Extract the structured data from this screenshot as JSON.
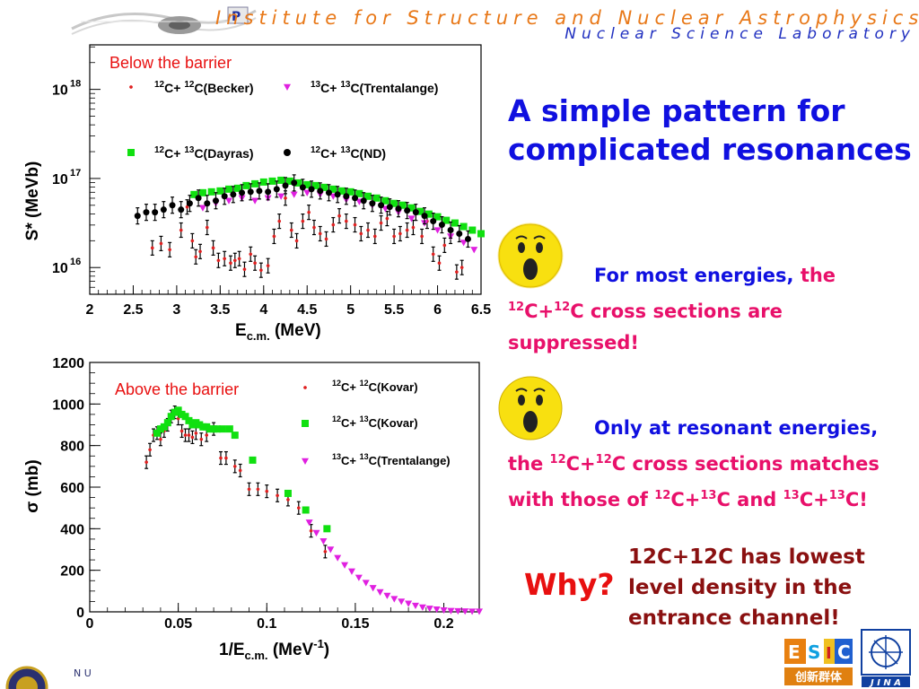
{
  "header": {
    "line1": "Institute for Structure and Nuclear Astrophysics",
    "line2": "Nuclear Science Laboratory"
  },
  "slide": {
    "title": "A simple pattern for complicated resonances",
    "bullet1": {
      "part1": "For most energies",
      "part2": ", ",
      "part3": "the ",
      "part4": "12",
      "part5": "C+",
      "part6": "12",
      "part7": "C cross sections are suppressed!"
    },
    "bullet2": {
      "part1": "Only at resonant energies",
      "part2": ", ",
      "part3": "the ",
      "part4": "12",
      "part5": "C+",
      "part6": "12",
      "part7": "C cross sections matches with those of ",
      "part8": "12",
      "part9": "C+",
      "part10": "13",
      "part11": "C and ",
      "part12": "13",
      "part13": "C+",
      "part14": "13",
      "part15": "C!"
    },
    "why": "Why?",
    "reason": "12C+12C has lowest level density in the entrance channel!",
    "logo_esic_text": "创新群体",
    "logo_jina_text": "J I N A"
  },
  "chart_data": [
    {
      "type": "scatter",
      "annotation": "Below the barrier",
      "xlabel_main": "E",
      "xlabel_sub": "c.m.",
      "xlabel_unit": " (MeV)",
      "ylabel": "S* (MeVb)",
      "xlim": [
        2,
        6.5
      ],
      "ylim_log10": [
        15.7,
        18.5
      ],
      "yscale": "log",
      "xticks": [
        "2",
        "2.5",
        "3",
        "3.5",
        "4",
        "4.5",
        "5",
        "5.5",
        "6",
        "6.5"
      ],
      "yticks": [
        {
          "base": "10",
          "exp": "16",
          "value": 16
        },
        {
          "base": "10",
          "exp": "17",
          "value": 17
        },
        {
          "base": "10",
          "exp": "18",
          "value": 18
        }
      ],
      "legend": [
        {
          "pre1": "12",
          "mid1": "C+ ",
          "pre2": "12",
          "post": "C(Becker)",
          "marker": "star",
          "color": "#e02020"
        },
        {
          "pre1": "13",
          "mid1": "C+ ",
          "pre2": "13",
          "post": "C(Trentalange)",
          "marker": "tri",
          "color": "#e020e0"
        },
        {
          "pre1": "12",
          "mid1": "C+ ",
          "pre2": "13",
          "post": "C(Dayras)",
          "marker": "square",
          "color": "#10e010"
        },
        {
          "pre1": "12",
          "mid1": "C+ ",
          "pre2": "13",
          "post": "C(ND)",
          "marker": "circle",
          "color": "#000000"
        }
      ],
      "series": [
        {
          "legend_index": 0,
          "marker": "star",
          "color": "#e02020",
          "errorbars": true,
          "x": [
            2.72,
            2.82,
            2.92,
            3.05,
            3.12,
            3.18,
            3.22,
            3.27,
            3.35,
            3.42,
            3.48,
            3.55,
            3.62,
            3.67,
            3.72,
            3.78,
            3.85,
            3.9,
            3.97,
            4.05,
            4.12,
            4.18,
            4.25,
            4.32,
            4.38,
            4.45,
            4.52,
            4.58,
            4.65,
            4.72,
            4.8,
            4.87,
            4.95,
            5.05,
            5.12,
            5.2,
            5.28,
            5.35,
            5.42,
            5.5,
            5.57,
            5.65,
            5.72,
            5.82,
            5.88,
            5.95,
            6.02,
            6.08,
            6.15,
            6.22,
            6.28
          ],
          "y": [
            16.22,
            16.27,
            16.2,
            16.42,
            16.68,
            16.3,
            16.12,
            16.18,
            16.45,
            16.22,
            16.08,
            16.1,
            16.05,
            16.08,
            16.1,
            15.98,
            16.15,
            16.05,
            15.97,
            16.02,
            16.35,
            16.52,
            16.78,
            16.42,
            16.3,
            16.52,
            16.62,
            16.45,
            16.38,
            16.32,
            16.48,
            16.58,
            16.52,
            16.48,
            16.38,
            16.42,
            16.35,
            16.5,
            16.55,
            16.35,
            16.38,
            16.42,
            16.45,
            16.35,
            16.52,
            16.15,
            16.05,
            16.25,
            16.35,
            15.95,
            16.0
          ]
        },
        {
          "legend_index": 1,
          "marker": "tri",
          "color": "#e020e0",
          "errorbars": false,
          "x": [
            3.3,
            3.45,
            3.6,
            3.75,
            3.9,
            4.05,
            4.2,
            4.35,
            4.5,
            4.65,
            4.8,
            4.95,
            5.1,
            5.25,
            5.4,
            5.55,
            5.7,
            5.85,
            6.0,
            6.15,
            6.3,
            6.42
          ],
          "y": [
            16.67,
            16.72,
            16.75,
            16.78,
            16.75,
            16.78,
            16.8,
            16.82,
            16.84,
            16.82,
            16.8,
            16.76,
            16.74,
            16.7,
            16.66,
            16.62,
            16.55,
            16.5,
            16.42,
            16.35,
            16.28,
            16.2
          ]
        },
        {
          "legend_index": 2,
          "marker": "square",
          "color": "#10e010",
          "errorbars": false,
          "x": [
            3.2,
            3.3,
            3.4,
            3.5,
            3.6,
            3.7,
            3.8,
            3.9,
            4.0,
            4.1,
            4.2,
            4.3,
            4.4,
            4.5,
            4.6,
            4.7,
            4.8,
            4.9,
            5.0,
            5.1,
            5.2,
            5.3,
            5.4,
            5.5,
            5.6,
            5.7,
            5.8,
            5.9,
            6.0,
            6.1,
            6.2,
            6.3,
            6.4,
            6.5
          ],
          "y": [
            16.82,
            16.84,
            16.85,
            16.86,
            16.88,
            16.89,
            16.92,
            16.94,
            16.96,
            16.97,
            16.98,
            16.97,
            16.95,
            16.93,
            16.92,
            16.9,
            16.88,
            16.86,
            16.85,
            16.83,
            16.8,
            16.78,
            16.75,
            16.72,
            16.7,
            16.67,
            16.63,
            16.6,
            16.57,
            16.53,
            16.5,
            16.46,
            16.42,
            16.38
          ]
        },
        {
          "legend_index": 3,
          "marker": "circle",
          "color": "#000000",
          "errorbars": true,
          "x": [
            2.55,
            2.65,
            2.75,
            2.85,
            2.95,
            3.05,
            3.15,
            3.25,
            3.35,
            3.45,
            3.55,
            3.65,
            3.75,
            3.85,
            3.95,
            4.05,
            4.15,
            4.25,
            4.35,
            4.45,
            4.55,
            4.65,
            4.75,
            4.85,
            4.95,
            5.05,
            5.15,
            5.25,
            5.35,
            5.45,
            5.55,
            5.65,
            5.75,
            5.85,
            5.95,
            6.05,
            6.15,
            6.25,
            6.35
          ],
          "y": [
            16.58,
            16.62,
            16.62,
            16.65,
            16.7,
            16.65,
            16.72,
            16.78,
            16.72,
            16.75,
            16.8,
            16.82,
            16.84,
            16.85,
            16.86,
            16.85,
            16.88,
            16.92,
            16.95,
            16.9,
            16.88,
            16.86,
            16.84,
            16.82,
            16.8,
            16.78,
            16.75,
            16.72,
            16.7,
            16.68,
            16.66,
            16.64,
            16.62,
            16.58,
            16.52,
            16.48,
            16.42,
            16.38,
            16.32
          ]
        }
      ]
    },
    {
      "type": "scatter",
      "annotation": "Above the barrier",
      "xlabel_main": "1/E",
      "xlabel_sub": "c.m.",
      "xlabel_unit": " (MeV",
      "xlabel_exp": "-1",
      "xlabel_close": ")",
      "ylabel": "σ (mb)",
      "xlim": [
        0,
        0.22
      ],
      "ylim": [
        0,
        1200
      ],
      "xticks": [
        {
          "label": "0",
          "value": 0
        },
        {
          "label": "0.05",
          "value": 0.05
        },
        {
          "label": "0.1",
          "value": 0.1
        },
        {
          "label": "0.15",
          "value": 0.15
        },
        {
          "label": "0.2",
          "value": 0.2
        }
      ],
      "yticks": [
        {
          "label": "0",
          "value": 0
        },
        {
          "label": "200",
          "value": 200
        },
        {
          "label": "400",
          "value": 400
        },
        {
          "label": "600",
          "value": 600
        },
        {
          "label": "800",
          "value": 800
        },
        {
          "label": "1000",
          "value": 1000
        },
        {
          "label": "1200",
          "value": 1200
        }
      ],
      "legend": [
        {
          "pre1": "12",
          "mid1": "C+ ",
          "pre2": "12",
          "post": "C(Kovar)",
          "marker": "star",
          "color": "#e02020"
        },
        {
          "pre1": "12",
          "mid1": "C+ ",
          "pre2": "13",
          "post": "C(Kovar)",
          "marker": "square",
          "color": "#10e010"
        },
        {
          "pre1": "13",
          "mid1": "C+ ",
          "pre2": "13",
          "post": "C(Trentalange)",
          "marker": "tri",
          "color": "#e020e0"
        }
      ],
      "series": [
        {
          "legend_index": 0,
          "marker": "star",
          "color": "#e02020",
          "errorbars": true,
          "x": [
            0.032,
            0.034,
            0.036,
            0.038,
            0.04,
            0.042,
            0.044,
            0.046,
            0.048,
            0.05,
            0.052,
            0.054,
            0.056,
            0.058,
            0.06,
            0.063,
            0.066,
            0.07,
            0.074,
            0.077,
            0.082,
            0.085,
            0.09,
            0.095,
            0.1,
            0.106,
            0.112,
            0.118,
            0.125,
            0.133
          ],
          "y": [
            720,
            780,
            850,
            860,
            830,
            870,
            900,
            940,
            960,
            930,
            870,
            850,
            850,
            840,
            860,
            830,
            850,
            880,
            740,
            740,
            700,
            680,
            590,
            590,
            580,
            560,
            540,
            500,
            390,
            290
          ]
        },
        {
          "legend_index": 1,
          "marker": "square",
          "color": "#10e010",
          "errorbars": false,
          "x": [
            0.038,
            0.04,
            0.042,
            0.044,
            0.046,
            0.048,
            0.05,
            0.052,
            0.054,
            0.056,
            0.058,
            0.06,
            0.062,
            0.064,
            0.066,
            0.068,
            0.07,
            0.072,
            0.075,
            0.079,
            0.082,
            0.092,
            0.112,
            0.122,
            0.134
          ],
          "y": [
            860,
            880,
            890,
            910,
            940,
            960,
            970,
            950,
            940,
            920,
            900,
            910,
            900,
            890,
            890,
            880,
            880,
            880,
            880,
            880,
            850,
            730,
            570,
            490,
            400
          ]
        },
        {
          "legend_index": 2,
          "marker": "tri",
          "color": "#e020e0",
          "errorbars": false,
          "x": [
            0.124,
            0.128,
            0.132,
            0.136,
            0.14,
            0.144,
            0.148,
            0.152,
            0.156,
            0.16,
            0.164,
            0.168,
            0.172,
            0.176,
            0.18,
            0.184,
            0.188,
            0.192,
            0.196,
            0.2,
            0.204,
            0.208,
            0.212,
            0.216,
            0.22
          ],
          "y": [
            430,
            380,
            340,
            300,
            260,
            225,
            195,
            165,
            140,
            115,
            95,
            78,
            62,
            50,
            40,
            30,
            22,
            16,
            12,
            8,
            5,
            4,
            3,
            2,
            2
          ]
        }
      ]
    }
  ]
}
